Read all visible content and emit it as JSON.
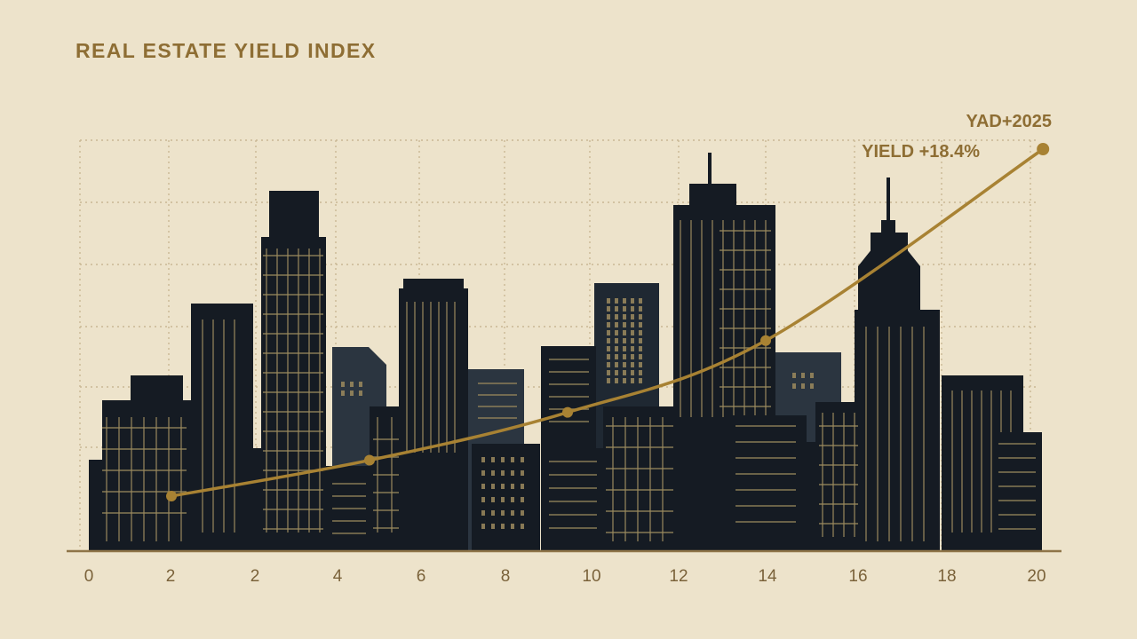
{
  "chart_data": {
    "type": "line",
    "title": "REAL ESTATE YIELD INDEX",
    "xlabel": "",
    "ylabel": "",
    "x_tick_labels": [
      "0",
      "2",
      "2",
      "4",
      "6",
      "8",
      "10",
      "12",
      "14",
      "16",
      "18",
      "20"
    ],
    "series": [
      {
        "x": [
          2,
          6,
          10,
          14,
          19.6
        ],
        "y": [
          1.0,
          2.8,
          5.2,
          8.8,
          18.4
        ]
      }
    ],
    "annotations": [
      {
        "text": "YAD+2025"
      },
      {
        "text": "YIELD +18.4%"
      }
    ],
    "grid": true,
    "background": "city skyline silhouette",
    "colors": {
      "background": "#ede3cb",
      "line": "#a88233",
      "text": "#8e6e34",
      "axis": "#8e7448",
      "grid": "#c9b894",
      "building_dark": "#151b23",
      "building_slate": "#2b3540",
      "window": "#9c8a5e"
    }
  }
}
